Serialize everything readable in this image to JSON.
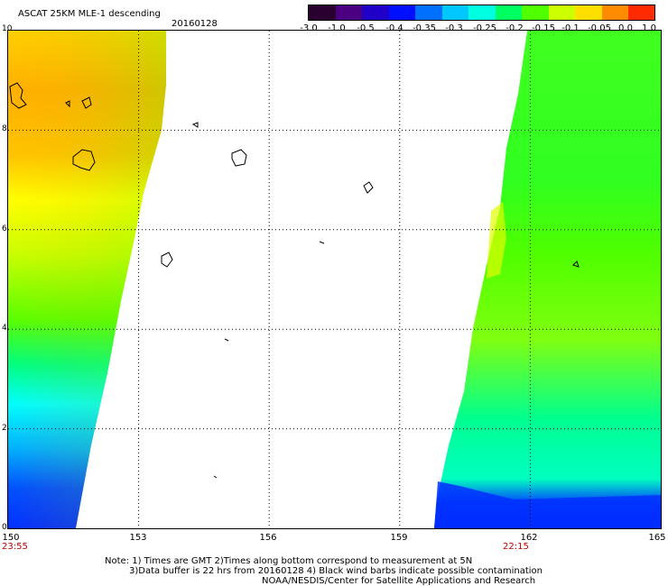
{
  "header": {
    "title": "ASCAT 25KM MLE-1 descending",
    "date": "20160128"
  },
  "colorbar": {
    "labels": [
      "-3.0",
      "-1.0",
      "-0.5",
      "-0.4",
      "-0.35",
      "-0.3",
      "-0.25",
      "-0.2",
      "-0.15",
      "-0.1",
      "-0.05",
      "0.0",
      "1.0"
    ],
    "colors": [
      "#2a0030",
      "#4b0082",
      "#2000c8",
      "#0010ff",
      "#0070ff",
      "#00c8ff",
      "#00ffe0",
      "#00ff60",
      "#50ff00",
      "#ccff00",
      "#ffdf00",
      "#ff8c00",
      "#ff2a00"
    ]
  },
  "axes": {
    "x_ticks": [
      "150",
      "153",
      "156",
      "159",
      "162",
      "165"
    ],
    "y_ticks": [
      "10",
      "8",
      "6",
      "4",
      "2",
      "0"
    ],
    "lon_range": [
      150,
      165
    ],
    "lat_range": [
      0,
      10
    ]
  },
  "times": {
    "left": "23:55",
    "right": "22:15"
  },
  "notes": [
    "Note: 1) Times are GMT 2)Times along bottom correspond to measurement at 5N",
    "3)Data buffer is 22 hrs from 20160128 4) Black wind barbs indicate possible contamination",
    "NOAA/NESDIS/Center for Satellite Applications and Research"
  ]
}
